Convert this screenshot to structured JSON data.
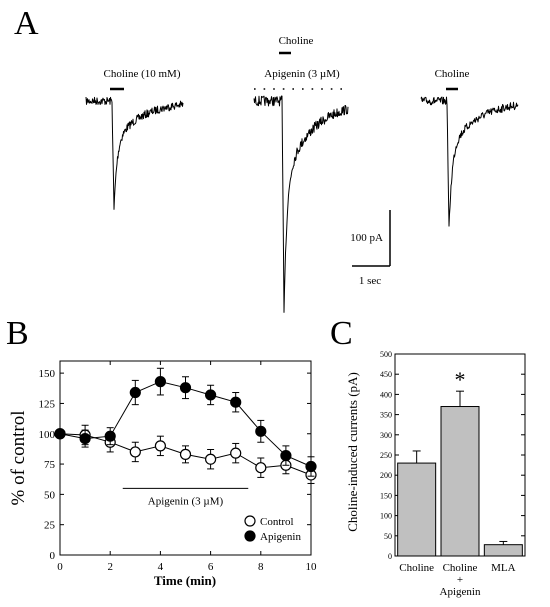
{
  "panels": {
    "a": {
      "letter": "A",
      "traces": [
        {
          "label": "Choline (10 mM)",
          "peak_pA": -195,
          "noise": 4
        },
        {
          "label": "Apigenin (3 µM)",
          "label_top": "Choline",
          "peak_pA": -370,
          "noise": 5,
          "dotted_bar": true
        },
        {
          "label": "Choline",
          "peak_pA": -230,
          "noise": 4
        }
      ],
      "scale_current_label": "100 pA",
      "scale_time_label": "1 sec"
    },
    "b": {
      "letter": "B",
      "bar_label": "Apigenin (3 µM)",
      "bar_range": [
        2.5,
        7.5
      ],
      "bar_y": 55
    },
    "c": {
      "letter": "C",
      "significance_label": "*",
      "significance_index": 1
    }
  },
  "chart_data": [
    {
      "type": "line",
      "panel": "B",
      "xlabel": "Time (min)",
      "ylabel": "% of control",
      "xlim": [
        0,
        10
      ],
      "ylim": [
        0,
        160
      ],
      "x_ticks": [
        0,
        2,
        4,
        6,
        8,
        10
      ],
      "y_ticks": [
        0,
        25,
        50,
        75,
        100,
        125,
        150
      ],
      "legend_position": "bottom-right",
      "series": [
        {
          "name": "Control",
          "marker": "open-circle",
          "x": [
            0,
            1,
            2,
            3,
            4,
            5,
            6,
            7,
            8,
            9,
            10
          ],
          "y": [
            100,
            99,
            93,
            85,
            90,
            83,
            79,
            84,
            72,
            74,
            66
          ],
          "err": [
            3,
            8,
            8,
            8,
            8,
            7,
            8,
            8,
            8,
            7,
            7
          ]
        },
        {
          "name": "Apigenin",
          "marker": "filled-circle",
          "x": [
            0,
            1,
            2,
            3,
            4,
            5,
            6,
            7,
            8,
            9,
            10
          ],
          "y": [
            100,
            96,
            98,
            134,
            143,
            138,
            132,
            126,
            102,
            82,
            73
          ],
          "err": [
            3,
            7,
            7,
            10,
            11,
            9,
            8,
            8,
            9,
            8,
            8
          ]
        }
      ]
    },
    {
      "type": "bar",
      "panel": "C",
      "ylabel": "Choline-induced currents (pA)",
      "ylim": [
        0,
        500
      ],
      "y_ticks": [
        0,
        50,
        100,
        150,
        200,
        250,
        300,
        350,
        400,
        450,
        500
      ],
      "categories": [
        "Choline",
        "Choline + Apigenin",
        "MLA"
      ],
      "category_lines": [
        [
          "Choline"
        ],
        [
          "Choline",
          "+",
          "Apigenin"
        ],
        [
          "MLA"
        ]
      ],
      "values": [
        230,
        370,
        28
      ],
      "err": [
        30,
        38,
        8
      ],
      "bar_color": "#c0c0c0"
    }
  ]
}
